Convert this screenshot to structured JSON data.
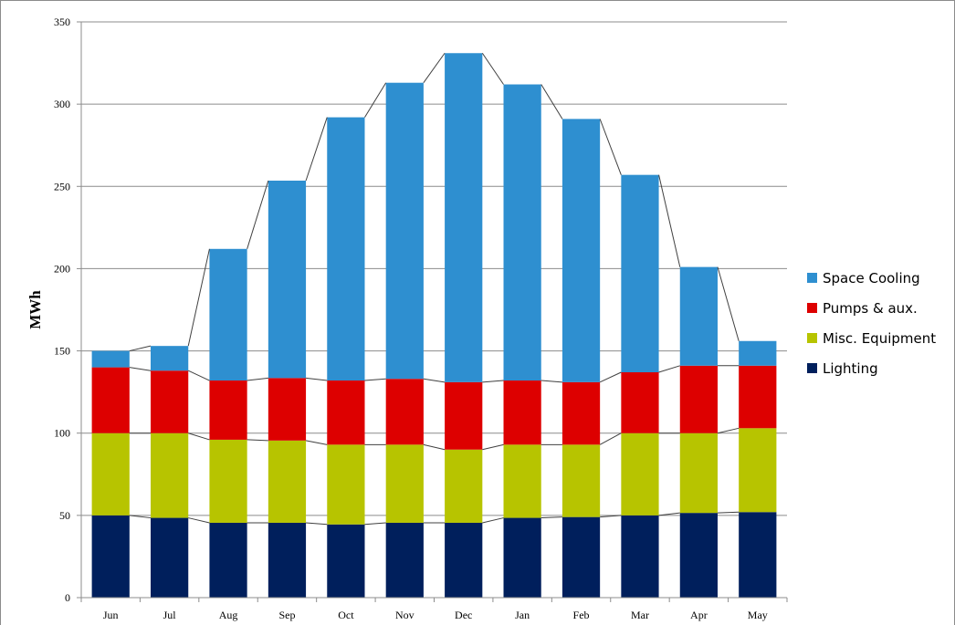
{
  "chart_data": {
    "type": "bar",
    "stacked": true,
    "title": "",
    "xlabel": "",
    "ylabel": "MWh",
    "ylim": [
      0,
      350
    ],
    "yticks": [
      0,
      50,
      100,
      150,
      200,
      250,
      300,
      350
    ],
    "grid": true,
    "legend_position": "right",
    "categories": [
      "Jun",
      "Jul",
      "Aug",
      "Sep",
      "Oct",
      "Nov",
      "Dec",
      "Jan",
      "Feb",
      "Mar",
      "Apr",
      "May"
    ],
    "series": [
      {
        "name": "Lighting",
        "color": "#001f5c",
        "values": [
          50,
          48.5,
          45.5,
          45.5,
          44.5,
          45.5,
          45.5,
          48.5,
          49,
          50,
          51.5,
          52
        ]
      },
      {
        "name": "Misc. Equipment",
        "color": "#b7c400",
        "values": [
          50,
          51.5,
          50.5,
          50,
          48.5,
          47.5,
          44.5,
          44.5,
          44,
          50,
          48.5,
          51
        ]
      },
      {
        "name": "Pumps & aux.",
        "color": "#dd0000",
        "values": [
          40,
          38,
          36,
          38,
          39,
          40,
          41,
          39,
          38,
          37,
          41,
          38
        ]
      },
      {
        "name": "Space Cooling",
        "color": "#2e8fd0",
        "values": [
          10,
          15,
          80,
          120,
          160,
          180,
          200,
          180,
          160,
          120,
          60,
          15
        ]
      }
    ]
  }
}
